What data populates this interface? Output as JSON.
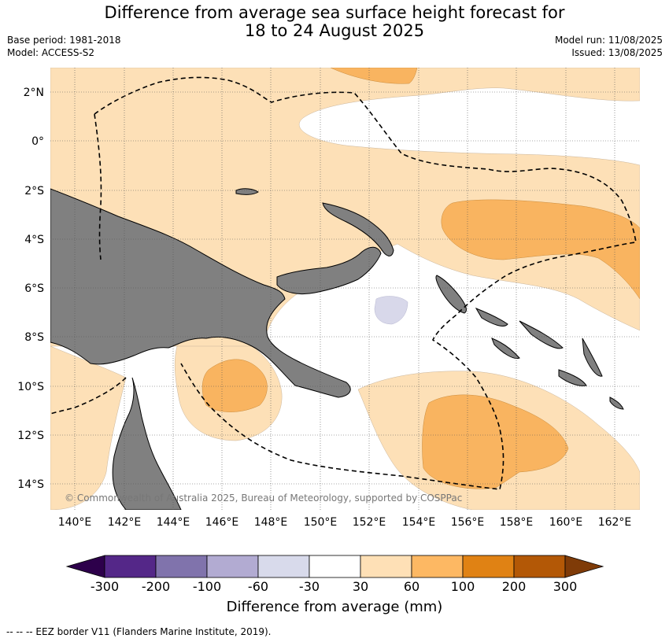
{
  "header": {
    "title_line1": "Difference from average sea surface height forecast for",
    "title_line2": "18 to 24 August 2025",
    "base_period": "Base period: 1981-2018",
    "model": "Model: ACCESS-S2",
    "model_run": "Model run: 11/08/2025",
    "issued": "Issued: 13/08/2025"
  },
  "map": {
    "lat_labels": [
      "2°N",
      "0°",
      "2°S",
      "4°S",
      "6°S",
      "8°S",
      "10°S",
      "12°S",
      "14°S"
    ],
    "lon_labels": [
      "140°E",
      "142°E",
      "144°E",
      "146°E",
      "148°E",
      "150°E",
      "152°E",
      "154°E",
      "156°E",
      "158°E",
      "160°E",
      "162°E"
    ],
    "copyright": "© Commonwealth of Australia 2025, Bureau of Meteorology, supported by COSPPac",
    "colors": {
      "land": "#808080",
      "sea_near_normal": "#ffffff",
      "light_orange": "#fde0b7",
      "mid_orange": "#f9b460",
      "light_purple": "#d8d8ea"
    }
  },
  "colorbar": {
    "title": "Difference from average (mm)",
    "ticks": [
      "-300",
      "-200",
      "-100",
      "-60",
      "-30",
      "30",
      "60",
      "100",
      "200",
      "300"
    ],
    "colors": [
      "#2d004b",
      "#542788",
      "#8073ac",
      "#b2abd2",
      "#d8daeb",
      "#ffffff",
      "#fee0b6",
      "#fdb863",
      "#e08214",
      "#b35806",
      "#7f3b08"
    ]
  },
  "footnote": "--  --  -- EEZ border V11 (Flanders Marine Institute, 2019)."
}
